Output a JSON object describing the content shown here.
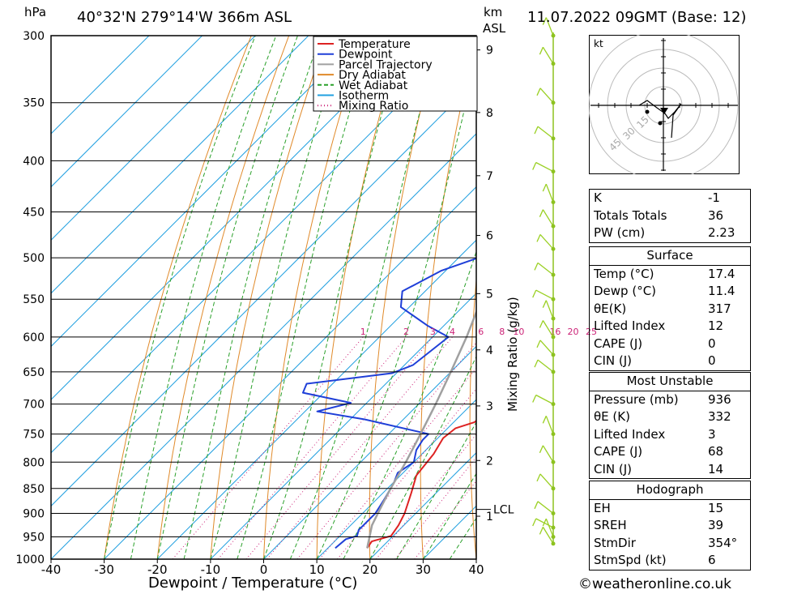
{
  "header": {
    "pressure_unit": "hPa",
    "location": "40°32'N  279°14'W  366m  ASL",
    "height_unit_km": "km",
    "height_unit_asl": "ASL",
    "datetime": "11.07.2022  09GMT  (Base: 12)"
  },
  "chart_data": {
    "type": "line",
    "xlabel": "Dewpoint / Temperature (°C)",
    "ylabel": "hPa",
    "right_label": "Mixing Ratio (g/kg)",
    "x_ticks": [
      -40,
      -30,
      -20,
      -10,
      0,
      10,
      20,
      30,
      40
    ],
    "y_ticks": [
      300,
      350,
      400,
      450,
      500,
      550,
      600,
      650,
      700,
      750,
      800,
      850,
      900,
      950,
      1000
    ],
    "km_ticks": [
      {
        "km": "1",
        "p": 906
      },
      {
        "km": "2",
        "p": 797
      },
      {
        "km": "3",
        "p": 703
      },
      {
        "km": "4",
        "p": 618
      },
      {
        "km": "5",
        "p": 543
      },
      {
        "km": "6",
        "p": 475
      },
      {
        "km": "7",
        "p": 414
      },
      {
        "km": "8",
        "p": 358
      },
      {
        "km": "9",
        "p": 310
      }
    ],
    "lcl": {
      "label": "LCL",
      "p": 892
    },
    "mixing_ratio_labels": [
      "1",
      "2",
      "3",
      "4",
      "6",
      "8",
      "10",
      "16",
      "20",
      "25"
    ],
    "legend": [
      {
        "name": "Temperature",
        "color": "#dd2222"
      },
      {
        "name": "Dewpoint",
        "color": "#1f3fd8"
      },
      {
        "name": "Parcel Trajectory",
        "color": "#a0a0a0"
      },
      {
        "name": "Dry Adiabat",
        "color": "#e08a2a"
      },
      {
        "name": "Wet Adiabat",
        "color": "#2aa02a"
      },
      {
        "name": "Isotherm",
        "color": "#22a0e0"
      },
      {
        "name": "Mixing Ratio",
        "color": "#cc2277"
      }
    ],
    "series": [
      {
        "name": "Temperature",
        "points": [
          [
            17.4,
            975
          ],
          [
            17.0,
            960
          ],
          [
            19.6,
            948
          ],
          [
            19.0,
            925
          ],
          [
            17.9,
            900
          ],
          [
            15.4,
            860
          ],
          [
            13.0,
            825
          ],
          [
            12.2,
            785
          ],
          [
            11.0,
            757
          ],
          [
            11.5,
            740
          ],
          [
            13.9,
            730
          ],
          [
            14.4,
            712
          ],
          [
            13.2,
            682
          ],
          [
            13.7,
            662
          ],
          [
            12.8,
            640
          ],
          [
            10.9,
            612
          ],
          [
            8.8,
            580
          ],
          [
            7.2,
            555
          ],
          [
            5.0,
            525
          ],
          [
            3.1,
            500
          ],
          [
            1.5,
            475
          ],
          [
            -1.5,
            450
          ],
          [
            -4.2,
            420
          ],
          [
            -7.0,
            400
          ],
          [
            -9.6,
            380
          ],
          [
            -12.0,
            360
          ],
          [
            -15.0,
            340
          ],
          [
            -18.0,
            320
          ],
          [
            -21.3,
            300
          ]
        ]
      },
      {
        "name": "Dewpoint",
        "points": [
          [
            11.4,
            975
          ],
          [
            11.7,
            955
          ],
          [
            13.2,
            948
          ],
          [
            12.4,
            935
          ],
          [
            12.4,
            900
          ],
          [
            11.4,
            870
          ],
          [
            10.2,
            840
          ],
          [
            9.0,
            820
          ],
          [
            10.0,
            800
          ],
          [
            8.2,
            778
          ],
          [
            7.5,
            760
          ],
          [
            7.5,
            750
          ],
          [
            -7.3,
            725
          ],
          [
            -17.7,
            712
          ],
          [
            -13.0,
            698
          ],
          [
            -23.9,
            682
          ],
          [
            -24.9,
            668
          ],
          [
            -10.8,
            652
          ],
          [
            -8.4,
            640
          ],
          [
            -7.0,
            600
          ],
          [
            -12.9,
            585
          ],
          [
            -21.6,
            560
          ],
          [
            -24.3,
            540
          ],
          [
            -20.8,
            515
          ],
          [
            -16.3,
            500
          ],
          [
            -18.3,
            480
          ],
          [
            -14.3,
            460
          ],
          [
            -9.4,
            455
          ],
          [
            -12.6,
            440
          ],
          [
            -9.1,
            425
          ],
          [
            -13.8,
            400
          ],
          [
            -18.2,
            375
          ],
          [
            -16.5,
            360
          ],
          [
            -12.0,
            350
          ],
          [
            -16.0,
            320
          ],
          [
            -17.0,
            300
          ]
        ]
      },
      {
        "name": "Parcel Trajectory",
        "points": [
          [
            17.4,
            975
          ],
          [
            14.0,
            925
          ],
          [
            12.5,
            892
          ],
          [
            10.6,
            850
          ],
          [
            8.5,
            800
          ],
          [
            6.0,
            750
          ],
          [
            3.2,
            700
          ],
          [
            0.0,
            650
          ],
          [
            -3.6,
            600
          ],
          [
            -7.9,
            550
          ],
          [
            -12.8,
            500
          ],
          [
            -18.6,
            450
          ],
          [
            -25.6,
            400
          ],
          [
            -34.0,
            350
          ],
          [
            -44.0,
            300
          ]
        ]
      }
    ]
  },
  "hodograph": {
    "unit": "kt",
    "rings": [
      "15",
      "30",
      "45"
    ]
  },
  "indices": [
    {
      "label": "K",
      "value": "-1"
    },
    {
      "label": "Totals Totals",
      "value": "36"
    },
    {
      "label": "PW (cm)",
      "value": "2.23"
    }
  ],
  "surface": {
    "title": "Surface",
    "rows": [
      {
        "label": "Temp (°C)",
        "value": "17.4"
      },
      {
        "label": "Dewp (°C)",
        "value": "11.4"
      },
      {
        "label": "θE(K)",
        "value": "317"
      },
      {
        "label": "Lifted Index",
        "value": "12"
      },
      {
        "label": "CAPE (J)",
        "value": "0"
      },
      {
        "label": "CIN (J)",
        "value": "0"
      }
    ]
  },
  "most_unstable": {
    "title": "Most Unstable",
    "rows": [
      {
        "label": "Pressure (mb)",
        "value": "936"
      },
      {
        "label": "θE (K)",
        "value": "332"
      },
      {
        "label": "Lifted Index",
        "value": "3"
      },
      {
        "label": "CAPE (J)",
        "value": "68"
      },
      {
        "label": "CIN (J)",
        "value": "14"
      }
    ]
  },
  "hodo_table": {
    "title": "Hodograph",
    "rows": [
      {
        "label": "EH",
        "value": "15"
      },
      {
        "label": "SREH",
        "value": "39"
      },
      {
        "label": "StmDir",
        "value": "354°"
      },
      {
        "label": "StmSpd (kt)",
        "value": "6"
      }
    ]
  },
  "credit": "©weatheronline.co.uk"
}
